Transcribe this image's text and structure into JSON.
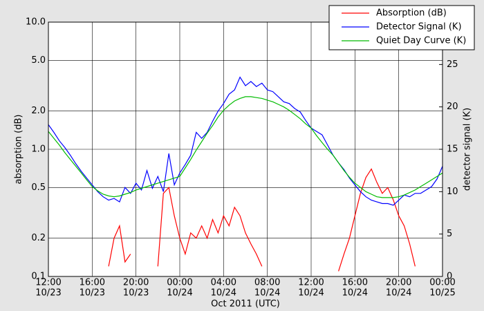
{
  "chart_data": {
    "type": "line",
    "xlabel": "Oct 2011 (UTC)",
    "ylabel": "absorption (dB)",
    "y2label": "detector signal (K)",
    "yscale": "log",
    "grid": true,
    "legend": "upper right",
    "xlim": [
      "2011-10-23T12:00",
      "2011-10-25T00:00"
    ],
    "xticks": [
      {
        "value": "2011-10-23T12:00",
        "label": [
          "12:00",
          "10/23"
        ]
      },
      {
        "value": "2011-10-23T16:00",
        "label": [
          "16:00",
          "10/23"
        ]
      },
      {
        "value": "2011-10-23T20:00",
        "label": [
          "20:00",
          "10/23"
        ]
      },
      {
        "value": "2011-10-24T00:00",
        "label": [
          "00:00",
          "10/24"
        ]
      },
      {
        "value": "2011-10-24T04:00",
        "label": [
          "04:00",
          "10/24"
        ]
      },
      {
        "value": "2011-10-24T08:00",
        "label": [
          "08:00",
          "10/24"
        ]
      },
      {
        "value": "2011-10-24T12:00",
        "label": [
          "12:00",
          "10/24"
        ]
      },
      {
        "value": "2011-10-24T16:00",
        "label": [
          "16:00",
          "10/24"
        ]
      },
      {
        "value": "2011-10-24T20:00",
        "label": [
          "20:00",
          "10/24"
        ]
      },
      {
        "value": "2011-10-25T00:00",
        "label": [
          "00:00",
          "10/25"
        ]
      }
    ],
    "ylim": [
      0.1,
      10
    ],
    "yticks": [
      0.1,
      0.2,
      0.5,
      {
        "value": 1,
        "label": "1.0"
      },
      {
        "value": 2,
        "label": "2.0"
      },
      {
        "value": 5,
        "label": "5.0"
      },
      {
        "value": 10,
        "label": "10.0"
      }
    ],
    "y2lim": [
      0,
      30
    ],
    "y2ticks": [
      0,
      5,
      10,
      15,
      20,
      25
    ],
    "x": [
      "2011-10-23T12:00",
      "2011-10-23T12:30",
      "2011-10-23T13:00",
      "2011-10-23T13:30",
      "2011-10-23T14:00",
      "2011-10-23T14:30",
      "2011-10-23T15:00",
      "2011-10-23T15:30",
      "2011-10-23T16:00",
      "2011-10-23T16:30",
      "2011-10-23T17:00",
      "2011-10-23T17:30",
      "2011-10-23T18:00",
      "2011-10-23T18:30",
      "2011-10-23T19:00",
      "2011-10-23T19:30",
      "2011-10-23T20:00",
      "2011-10-23T20:30",
      "2011-10-23T21:00",
      "2011-10-23T21:30",
      "2011-10-23T22:00",
      "2011-10-23T22:30",
      "2011-10-23T23:00",
      "2011-10-23T23:30",
      "2011-10-24T00:00",
      "2011-10-24T00:30",
      "2011-10-24T01:00",
      "2011-10-24T01:30",
      "2011-10-24T02:00",
      "2011-10-24T02:30",
      "2011-10-24T03:00",
      "2011-10-24T03:30",
      "2011-10-24T04:00",
      "2011-10-24T04:30",
      "2011-10-24T05:00",
      "2011-10-24T05:30",
      "2011-10-24T06:00",
      "2011-10-24T06:30",
      "2011-10-24T07:00",
      "2011-10-24T07:30",
      "2011-10-24T08:00",
      "2011-10-24T08:30",
      "2011-10-24T09:00",
      "2011-10-24T09:30",
      "2011-10-24T10:00",
      "2011-10-24T10:30",
      "2011-10-24T11:00",
      "2011-10-24T11:30",
      "2011-10-24T12:00",
      "2011-10-24T12:30",
      "2011-10-24T13:00",
      "2011-10-24T13:30",
      "2011-10-24T14:00",
      "2011-10-24T14:30",
      "2011-10-24T15:00",
      "2011-10-24T15:30",
      "2011-10-24T16:00",
      "2011-10-24T16:30",
      "2011-10-24T17:00",
      "2011-10-24T17:30",
      "2011-10-24T18:00",
      "2011-10-24T18:30",
      "2011-10-24T19:00",
      "2011-10-24T19:30",
      "2011-10-24T20:00",
      "2011-10-24T20:30",
      "2011-10-24T21:00",
      "2011-10-24T21:30",
      "2011-10-24T22:00",
      "2011-10-24T22:30",
      "2011-10-24T23:00",
      "2011-10-24T23:30",
      "2011-10-25T00:00"
    ],
    "series": [
      {
        "name": "Absorption (dB)",
        "color": "#ff0000",
        "values": [
          null,
          null,
          null,
          null,
          null,
          null,
          null,
          null,
          null,
          null,
          null,
          0.12,
          0.2,
          0.25,
          0.13,
          0.15,
          null,
          0.11,
          null,
          null,
          0.12,
          0.45,
          0.5,
          0.3,
          0.2,
          0.15,
          0.22,
          0.2,
          0.25,
          0.2,
          0.28,
          0.22,
          0.3,
          0.25,
          0.35,
          0.3,
          0.22,
          0.18,
          0.15,
          0.12,
          null,
          null,
          null,
          null,
          null,
          null,
          null,
          null,
          null,
          null,
          null,
          null,
          null,
          0.11,
          0.15,
          0.2,
          0.3,
          0.45,
          0.6,
          0.7,
          0.55,
          0.45,
          0.5,
          0.4,
          0.3,
          0.25,
          0.18,
          0.12,
          null,
          null,
          null,
          null,
          null
        ]
      },
      {
        "name": "Detector Signal (K)",
        "color": "#0000ff",
        "axis": "y2",
        "values": [
          17.9,
          17.0,
          16.0,
          15.2,
          14.3,
          13.3,
          12.4,
          11.6,
          10.8,
          10.0,
          9.4,
          9.0,
          9.2,
          8.8,
          10.5,
          9.8,
          11.0,
          10.2,
          12.5,
          10.4,
          11.8,
          10.0,
          14.5,
          10.8,
          12.2,
          13.2,
          14.3,
          17.0,
          16.3,
          17.0,
          18.3,
          19.5,
          20.4,
          21.5,
          22.0,
          23.5,
          22.5,
          23.0,
          22.4,
          22.8,
          22.0,
          21.8,
          21.2,
          20.6,
          20.4,
          19.8,
          19.4,
          18.4,
          17.5,
          17.1,
          16.7,
          15.5,
          14.3,
          13.4,
          12.6,
          11.6,
          10.8,
          10.0,
          9.4,
          9.0,
          8.8,
          8.6,
          8.6,
          8.4,
          9.0,
          9.6,
          9.4,
          9.8,
          9.8,
          10.2,
          10.6,
          11.5,
          13.0
        ]
      },
      {
        "name": "Quiet Day Curve (K)",
        "color": "#00bb00",
        "axis": "y2",
        "values": [
          17.1,
          16.3,
          15.5,
          14.6,
          13.8,
          13.0,
          12.2,
          11.4,
          10.6,
          10.1,
          9.7,
          9.5,
          9.4,
          9.5,
          9.7,
          9.9,
          10.2,
          10.4,
          10.6,
          10.8,
          11.0,
          11.2,
          11.4,
          11.6,
          11.8,
          12.8,
          13.8,
          14.9,
          15.9,
          16.9,
          17.8,
          18.8,
          19.6,
          20.2,
          20.7,
          21.0,
          21.2,
          21.2,
          21.1,
          21.0,
          20.8,
          20.6,
          20.3,
          20.0,
          19.6,
          19.1,
          18.6,
          18.0,
          17.5,
          16.6,
          15.8,
          15.0,
          14.3,
          13.4,
          12.5,
          11.7,
          11.0,
          10.5,
          10.0,
          9.7,
          9.4,
          9.3,
          9.3,
          9.3,
          9.4,
          9.6,
          9.9,
          10.2,
          10.6,
          11.0,
          11.4,
          11.8,
          12.2
        ]
      }
    ]
  }
}
